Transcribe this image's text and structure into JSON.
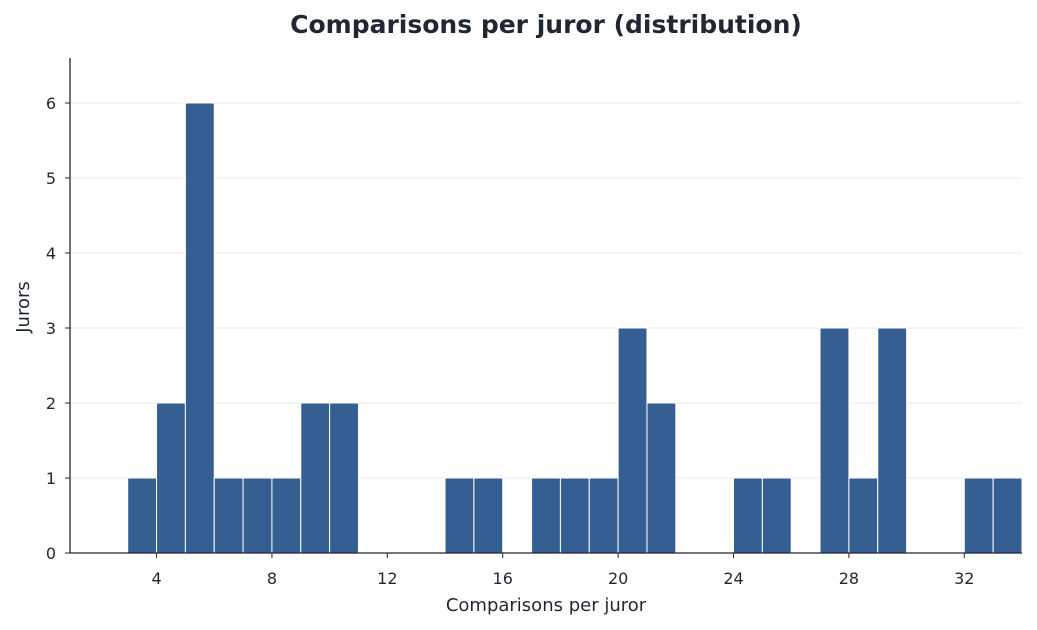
{
  "chart_data": {
    "type": "bar",
    "title": "Comparisons per juror (distribution)",
    "xlabel": "Comparisons per juror",
    "ylabel": "Jurors",
    "bin_width": 1,
    "bins": [
      {
        "x_start": 3,
        "count": 1
      },
      {
        "x_start": 4,
        "count": 2
      },
      {
        "x_start": 5,
        "count": 6
      },
      {
        "x_start": 6,
        "count": 1
      },
      {
        "x_start": 7,
        "count": 1
      },
      {
        "x_start": 8,
        "count": 1
      },
      {
        "x_start": 9,
        "count": 2
      },
      {
        "x_start": 10,
        "count": 2
      },
      {
        "x_start": 14,
        "count": 1
      },
      {
        "x_start": 15,
        "count": 1
      },
      {
        "x_start": 17,
        "count": 1
      },
      {
        "x_start": 18,
        "count": 1
      },
      {
        "x_start": 19,
        "count": 1
      },
      {
        "x_start": 20,
        "count": 3
      },
      {
        "x_start": 21,
        "count": 2
      },
      {
        "x_start": 24,
        "count": 1
      },
      {
        "x_start": 25,
        "count": 1
      },
      {
        "x_start": 27,
        "count": 3
      },
      {
        "x_start": 28,
        "count": 1
      },
      {
        "x_start": 29,
        "count": 3
      },
      {
        "x_start": 32,
        "count": 1
      },
      {
        "x_start": 33,
        "count": 1
      }
    ],
    "xlim": [
      1.0,
      34.0
    ],
    "ylim": [
      0,
      6.6
    ],
    "xticks": [
      4,
      8,
      12,
      16,
      20,
      24,
      28,
      32
    ],
    "yticks": [
      0,
      1,
      2,
      3,
      4,
      5,
      6
    ],
    "grid": "horizontal",
    "bar_color": "#355f93",
    "edge_color": "#ffffff"
  }
}
